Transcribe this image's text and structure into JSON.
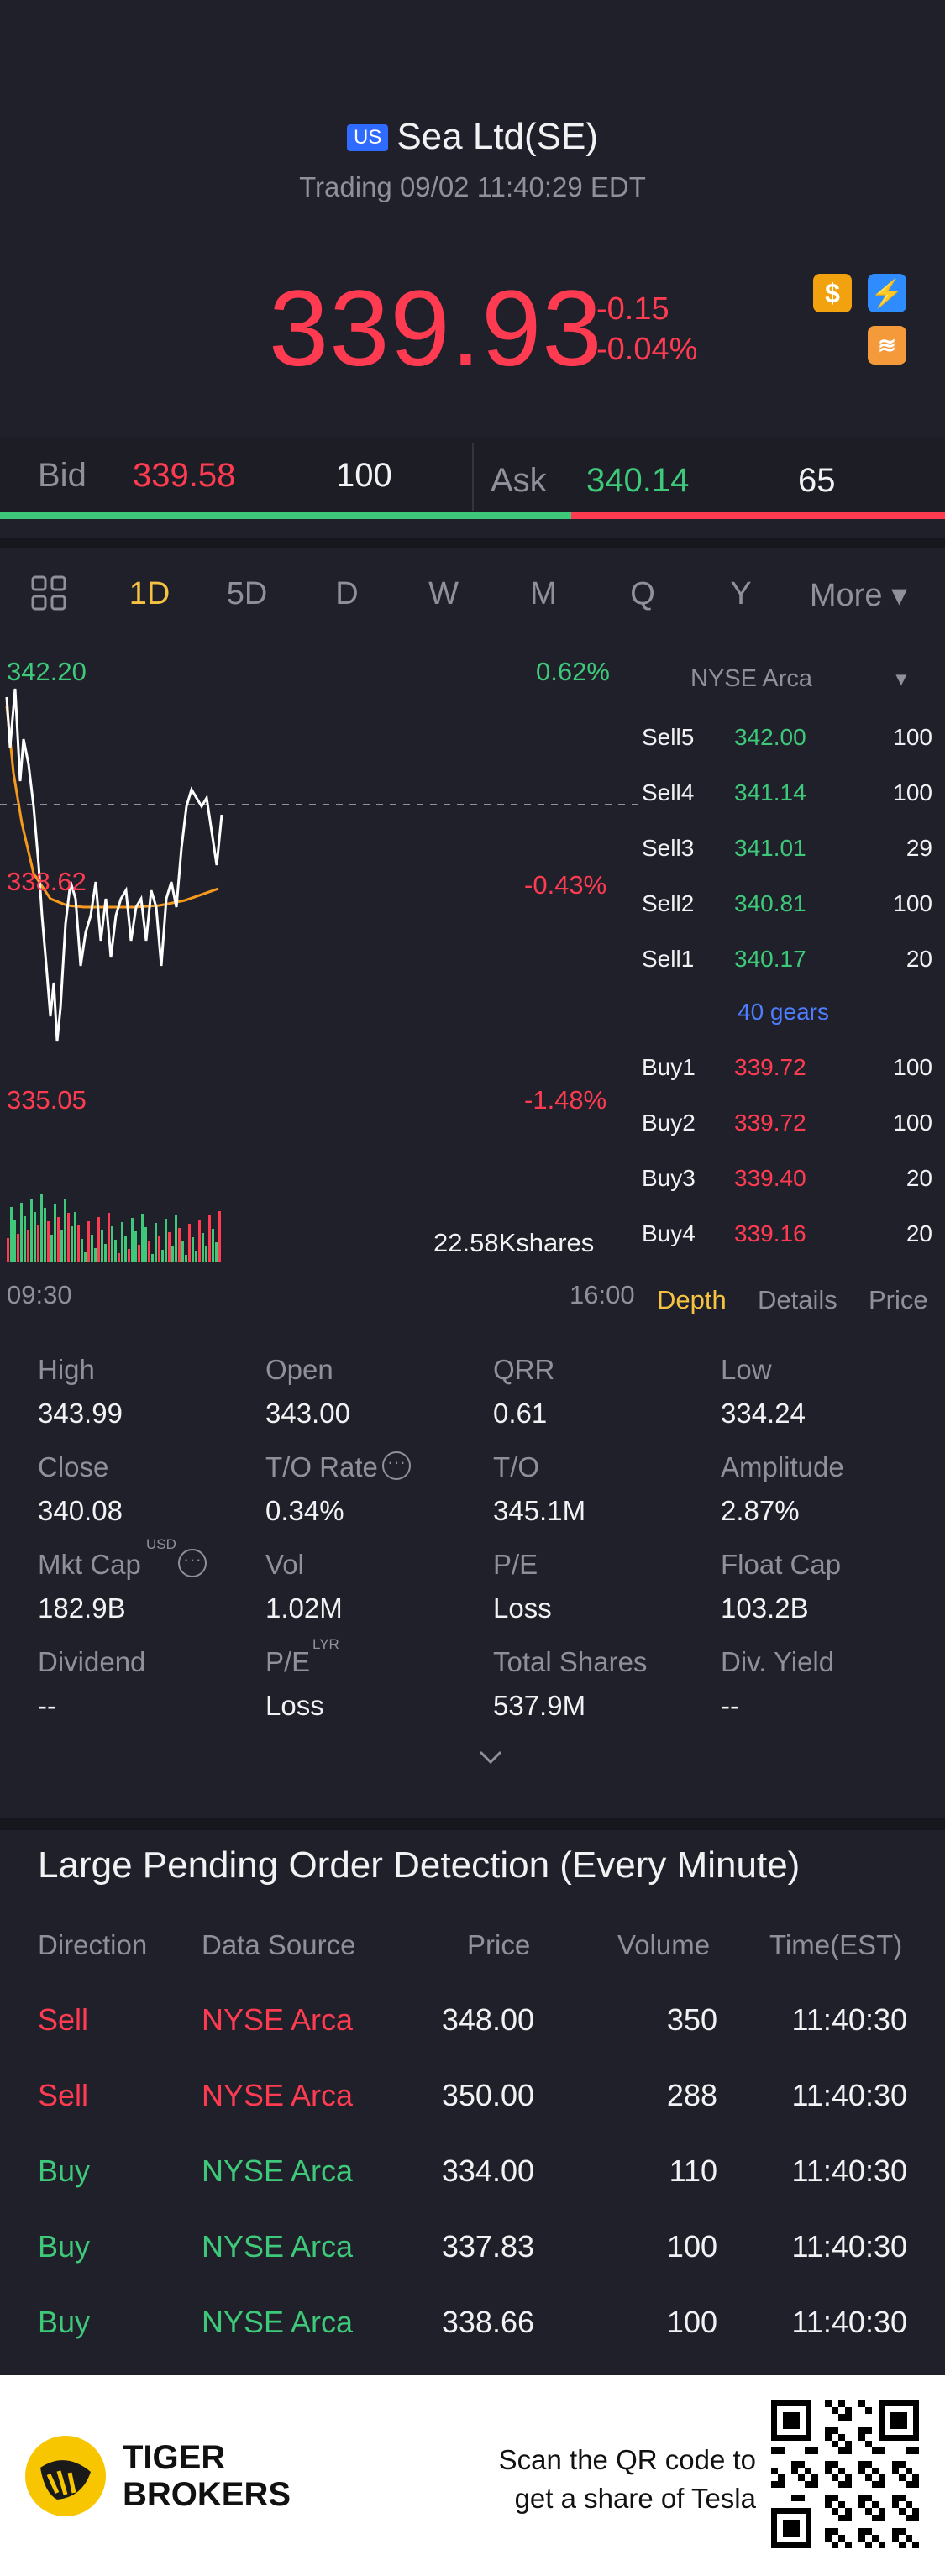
{
  "header": {
    "market_badge": "US",
    "title": "Sea Ltd(SE)",
    "trading_time": "Trading 09/02 11:40:29 EDT",
    "price": "339.93",
    "change": "-0.15",
    "change_pct": "-0.04%"
  },
  "bidask": {
    "bid_label": "Bid",
    "bid_price": "339.58",
    "bid_vol": "100",
    "ask_label": "Ask",
    "ask_price": "340.14",
    "ask_vol": "65"
  },
  "tabs": [
    "1D",
    "5D",
    "D",
    "W",
    "M",
    "Q",
    "Y"
  ],
  "tabs_more": "More ▾",
  "chart": {
    "high_label": "342.20",
    "high_pct": "0.62%",
    "mid_label": "338.62",
    "mid_pct": "-0.43%",
    "low_label": "335.05",
    "low_pct": "-1.48%",
    "volume_label": "22.58Kshares",
    "time_start": "09:30",
    "time_end": "16:00"
  },
  "orderbook": {
    "exchange": "NYSE Arca",
    "sells": [
      {
        "label": "Sell5",
        "price": "342.00",
        "vol": "100"
      },
      {
        "label": "Sell4",
        "price": "341.14",
        "vol": "100"
      },
      {
        "label": "Sell3",
        "price": "341.01",
        "vol": "29"
      },
      {
        "label": "Sell2",
        "price": "340.81",
        "vol": "100"
      },
      {
        "label": "Sell1",
        "price": "340.17",
        "vol": "20"
      }
    ],
    "gears": "40 gears",
    "buys": [
      {
        "label": "Buy1",
        "price": "339.72",
        "vol": "100"
      },
      {
        "label": "Buy2",
        "price": "339.72",
        "vol": "100"
      },
      {
        "label": "Buy3",
        "price": "339.40",
        "vol": "20"
      },
      {
        "label": "Buy4",
        "price": "339.16",
        "vol": "20"
      }
    ],
    "tab_depth": "Depth",
    "tab_details": "Details",
    "tab_price": "Price"
  },
  "stats": [
    {
      "label": "High",
      "value": "343.99"
    },
    {
      "label": "Open",
      "value": "343.00"
    },
    {
      "label": "QRR",
      "value": "0.61"
    },
    {
      "label": "Low",
      "value": "334.24"
    },
    {
      "label": "Close",
      "value": "340.08"
    },
    {
      "label": "T/O Rate",
      "value": "0.34%"
    },
    {
      "label": "T/O",
      "value": "345.1M"
    },
    {
      "label": "Amplitude",
      "value": "2.87%"
    },
    {
      "label": "Mkt Cap",
      "value": "182.9B"
    },
    {
      "label": "Vol",
      "value": "1.02M"
    },
    {
      "label": "P/E",
      "value": "Loss"
    },
    {
      "label": "Float Cap",
      "value": "103.2B"
    },
    {
      "label": "Dividend",
      "value": "--"
    },
    {
      "label": "P/E",
      "value": "Loss"
    },
    {
      "label": "Total Shares",
      "value": "537.9M"
    },
    {
      "label": "Div. Yield",
      "value": "--"
    }
  ],
  "stats_sup": {
    "usd": "USD",
    "lyr": "LYR"
  },
  "large_orders": {
    "title": "Large Pending Order Detection (Every Minute)",
    "headers": [
      "Direction",
      "Data Source",
      "Price",
      "Volume",
      "Time(EST)"
    ],
    "rows": [
      {
        "dir": "Sell",
        "source": "NYSE Arca",
        "price": "348.00",
        "vol": "350",
        "time": "11:40:30"
      },
      {
        "dir": "Sell",
        "source": "NYSE Arca",
        "price": "350.00",
        "vol": "288",
        "time": "11:40:30"
      },
      {
        "dir": "Buy",
        "source": "NYSE Arca",
        "price": "334.00",
        "vol": "110",
        "time": "11:40:30"
      },
      {
        "dir": "Buy",
        "source": "NYSE Arca",
        "price": "337.83",
        "vol": "100",
        "time": "11:40:30"
      },
      {
        "dir": "Buy",
        "source": "NYSE Arca",
        "price": "338.66",
        "vol": "100",
        "time": "11:40:30"
      }
    ]
  },
  "footer": {
    "brand_line1": "TIGER",
    "brand_line2": "BROKERS",
    "scan_line1": "Scan the QR code to",
    "scan_line2": "get a share of Tesla"
  },
  "colors": {
    "up": "#3ec97a",
    "down": "#ff3b52",
    "accent": "#f5c242",
    "link": "#4f7dff"
  },
  "icons": [
    "dollar-icon",
    "lightning-icon",
    "layers-icon",
    "grid-icon",
    "chevron-down-icon",
    "more-circle-icon",
    "qr-code-icon",
    "tiger-logo-icon"
  ]
}
